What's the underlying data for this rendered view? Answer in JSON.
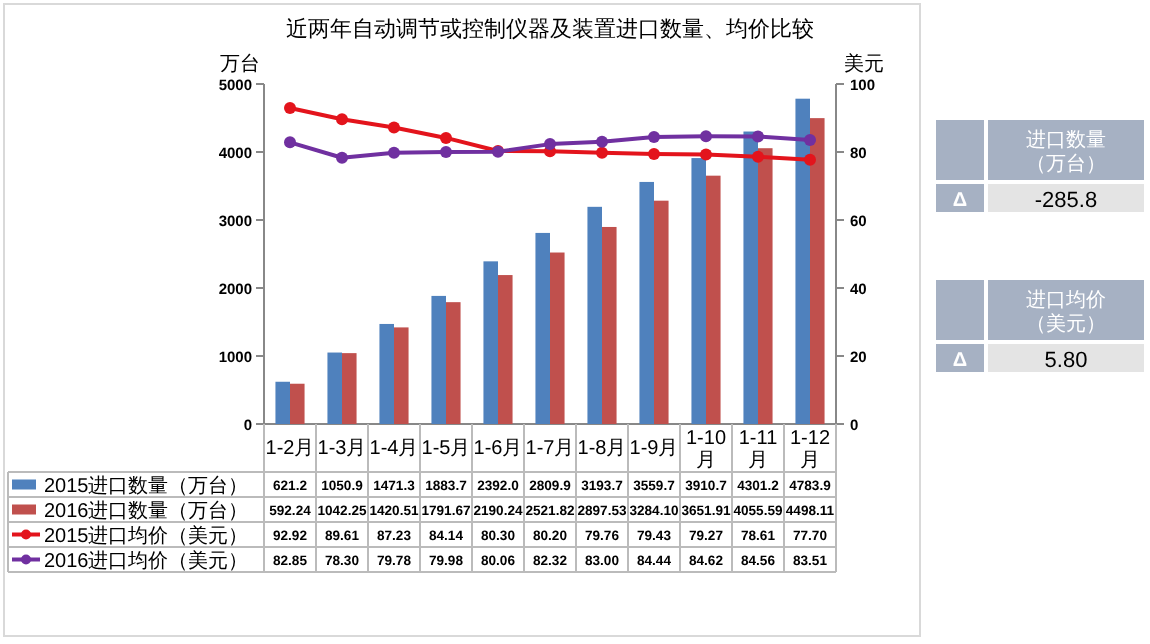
{
  "chart_data": [
    {
      "type": "bar",
      "title": "近两年自动调节或控制仪器及装置进口数量、均价比较",
      "ylabel": "万台",
      "y2label": "美元",
      "categories": [
        "1-2月",
        "1-3月",
        "1-4月",
        "1-5月",
        "1-6月",
        "1-7月",
        "1-8月",
        "1-9月",
        "1-10月",
        "1-11月",
        "1-12月"
      ],
      "series": [
        {
          "name": "2015进口数量（万台）",
          "type": "bar",
          "color": "#4f81bd",
          "values": [
            621.2,
            1050.9,
            1471.3,
            1883.7,
            2392.0,
            2809.9,
            3193.7,
            3559.7,
            3910.7,
            4301.2,
            4783.9
          ],
          "value_labels": [
            "621.2",
            "1050.9",
            "1471.3",
            "1883.7",
            "2392.0",
            "2809.9",
            "3193.7",
            "3559.7",
            "3910.7",
            "4301.2",
            "4783.9"
          ]
        },
        {
          "name": "2016进口数量（万台）",
          "type": "bar",
          "color": "#c0504d",
          "values": [
            592.24,
            1042.25,
            1420.51,
            1791.67,
            2190.24,
            2521.82,
            2897.53,
            3284.1,
            3651.91,
            4055.59,
            4498.11
          ],
          "value_labels": [
            "592.24",
            "1042.25",
            "1420.51",
            "1791.67",
            "2190.24",
            "2521.82",
            "2897.53",
            "3284.10",
            "3651.91",
            "4055.59",
            "4498.11"
          ]
        },
        {
          "name": "2015进口均价（美元）",
          "type": "line",
          "axis": "y2",
          "marker": "circle",
          "color": "#e3141c",
          "values": [
            92.92,
            89.61,
            87.23,
            84.14,
            80.3,
            80.2,
            79.76,
            79.43,
            79.27,
            78.61,
            77.7
          ],
          "value_labels": [
            "92.92",
            "89.61",
            "87.23",
            "84.14",
            "80.30",
            "80.20",
            "79.76",
            "79.43",
            "79.27",
            "78.61",
            "77.70"
          ]
        },
        {
          "name": "2016进口均价（美元）",
          "type": "line",
          "axis": "y2",
          "marker": "circle",
          "color": "#7030a0",
          "values": [
            82.85,
            78.3,
            79.78,
            79.98,
            80.06,
            82.32,
            83.0,
            84.44,
            84.62,
            84.56,
            83.51
          ],
          "value_labels": [
            "82.85",
            "78.30",
            "79.78",
            "79.98",
            "80.06",
            "82.32",
            "83.00",
            "84.44",
            "84.62",
            "84.56",
            "83.51"
          ]
        }
      ],
      "ylim": [
        0,
        5000
      ],
      "yticks": [
        0,
        1000,
        2000,
        3000,
        4000,
        5000
      ],
      "y2lim": [
        0,
        100
      ],
      "y2ticks": [
        0,
        20,
        40,
        60,
        80,
        100
      ],
      "legend": "bottom"
    },
    {
      "type": "other",
      "annotations": [
        "进口数量（万台）",
        "Δ",
        "-285.8",
        "进口均价（美元）",
        "Δ",
        "5.80"
      ]
    }
  ]
}
